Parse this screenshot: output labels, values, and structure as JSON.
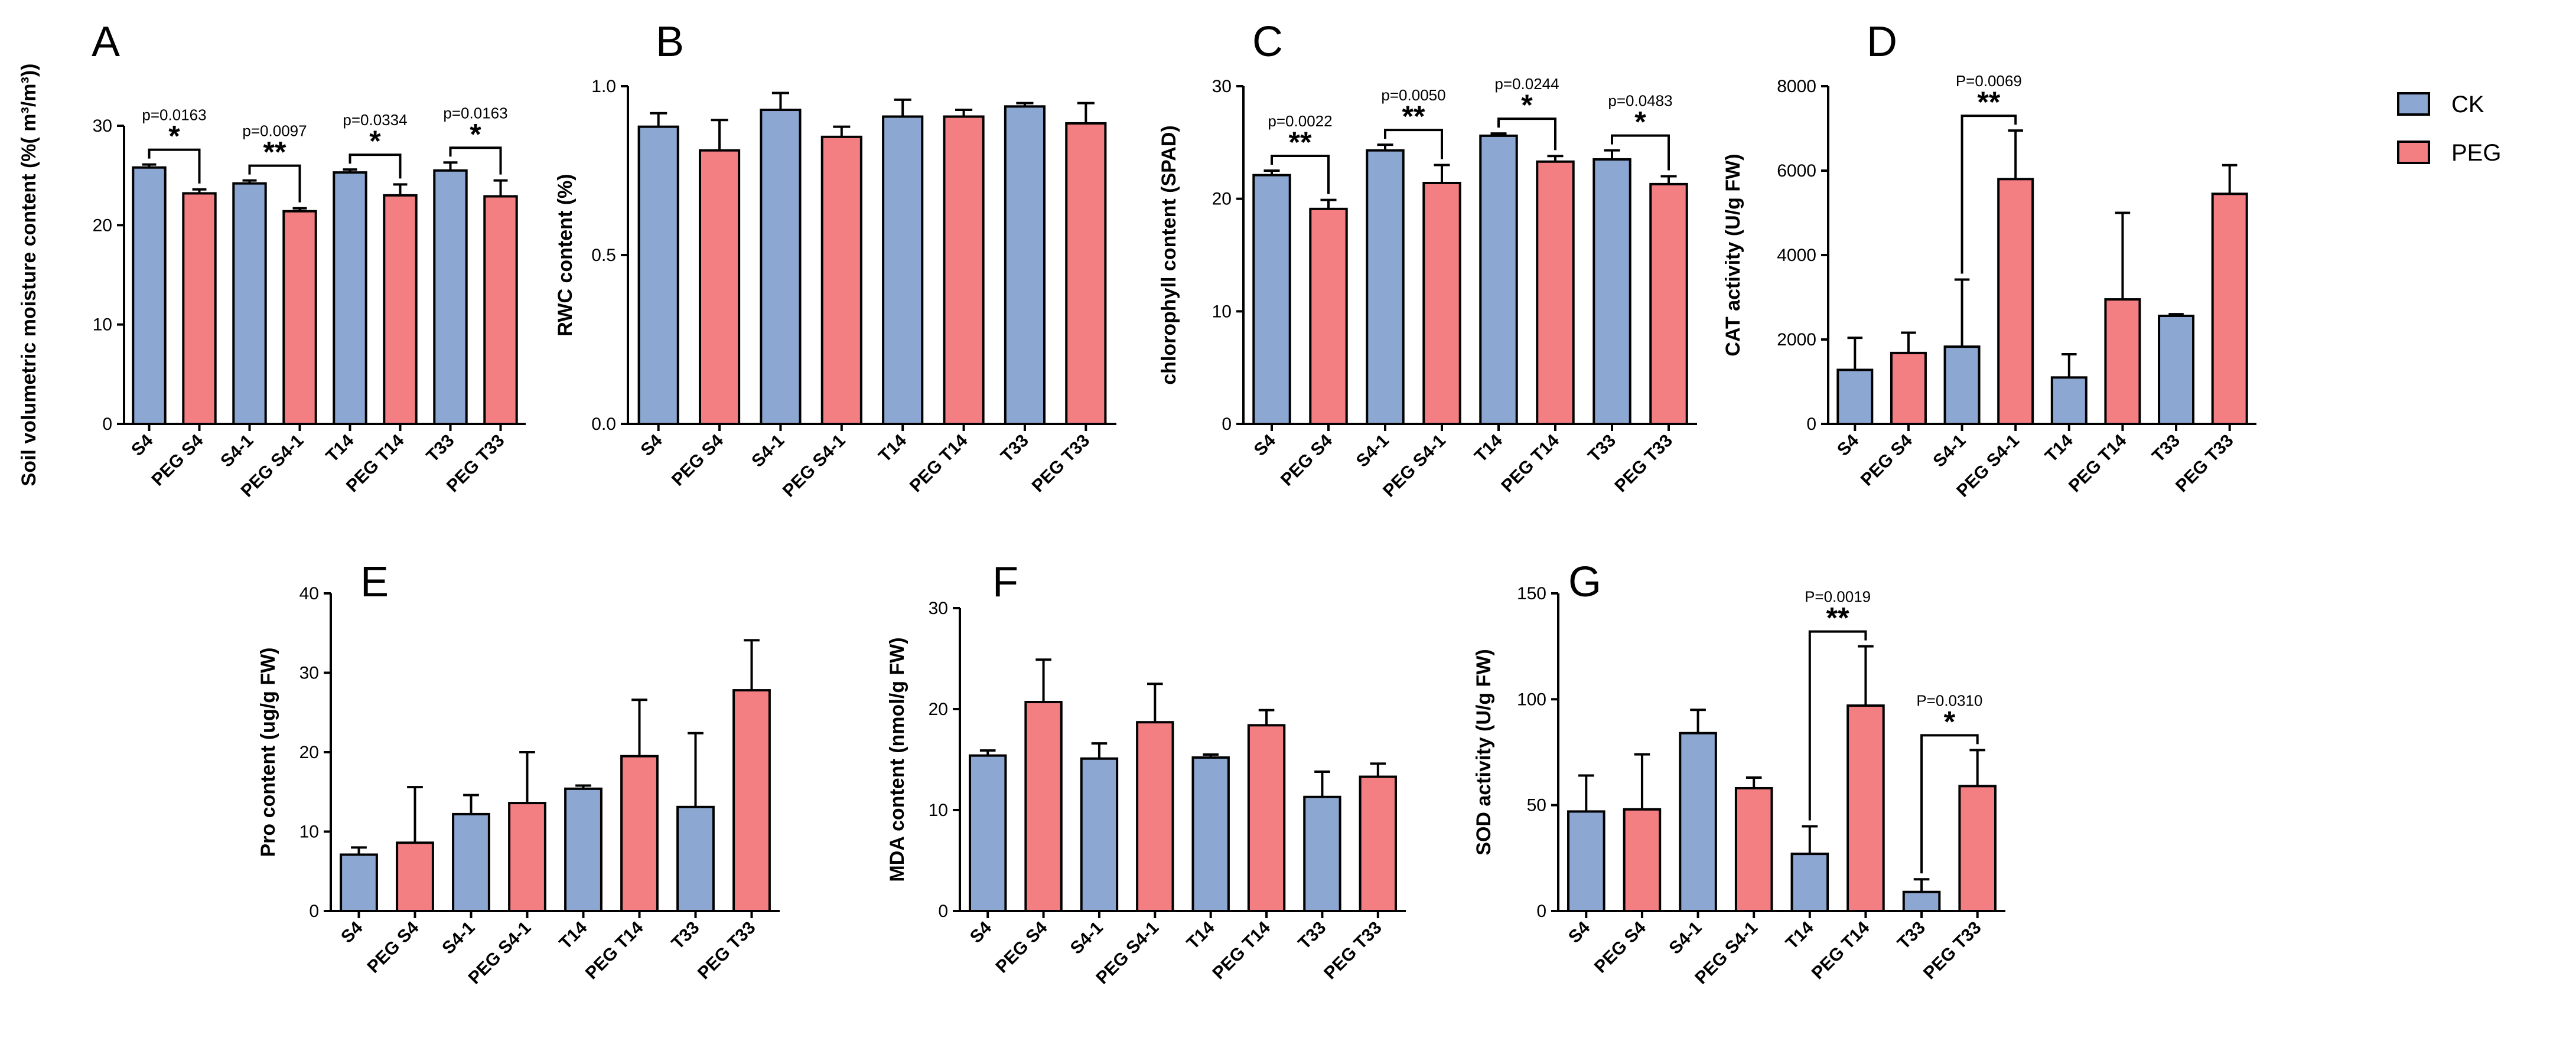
{
  "colors": {
    "CK": "#8ca8d2",
    "PEG": "#f47f83"
  },
  "legend": {
    "items": [
      {
        "label": "CK",
        "group": "CK"
      },
      {
        "label": "PEG",
        "group": "PEG"
      }
    ]
  },
  "chart_data": [
    {
      "panel": "A",
      "type": "bar",
      "ylabel": "Soil volumetric moisture content (%( m³/m³))",
      "ylim": [
        0,
        30
      ],
      "yticks": [
        "0",
        "10",
        "20",
        "30"
      ],
      "categories": [
        "S4",
        "PEG S4",
        "S4-1",
        "PEG S4-1",
        "T14",
        "PEG T14",
        "T33",
        "PEG T33"
      ],
      "groups": [
        "CK",
        "PEG",
        "CK",
        "PEG",
        "CK",
        "PEG",
        "CK",
        "PEG"
      ],
      "values": [
        25.8,
        23.2,
        24.2,
        21.4,
        25.3,
        23.0,
        25.5,
        22.9
      ],
      "errors": [
        0.3,
        0.4,
        0.3,
        0.3,
        0.3,
        1.1,
        0.8,
        1.6
      ],
      "comparisons": [
        {
          "from": 0,
          "to": 1,
          "p": "p=0.0163",
          "stars": "*"
        },
        {
          "from": 2,
          "to": 3,
          "p": "p=0.0097",
          "stars": "**"
        },
        {
          "from": 4,
          "to": 5,
          "p": "p=0.0334",
          "stars": "*"
        },
        {
          "from": 6,
          "to": 7,
          "p": "p=0.0163",
          "stars": "*"
        }
      ]
    },
    {
      "panel": "B",
      "type": "bar",
      "ylabel": "RWC content (%)",
      "ylim": [
        0,
        1
      ],
      "yticks": [
        "0.0",
        "0.5",
        "1.0"
      ],
      "categories": [
        "S4",
        "PEG S4",
        "S4-1",
        "PEG S4-1",
        "T14",
        "PEG T14",
        "T33",
        "PEG T33"
      ],
      "groups": [
        "CK",
        "PEG",
        "CK",
        "PEG",
        "CK",
        "PEG",
        "CK",
        "PEG"
      ],
      "values": [
        0.88,
        0.81,
        0.93,
        0.85,
        0.91,
        0.91,
        0.94,
        0.89
      ],
      "errors": [
        0.04,
        0.09,
        0.05,
        0.03,
        0.05,
        0.02,
        0.01,
        0.06
      ],
      "comparisons": []
    },
    {
      "panel": "C",
      "type": "bar",
      "ylabel": "chlorophyll content (SPAD)",
      "ylim": [
        0,
        30
      ],
      "yticks": [
        "0",
        "10",
        "20",
        "30"
      ],
      "categories": [
        "S4",
        "PEG S4",
        "S4-1",
        "PEG S4-1",
        "T14",
        "PEG T14",
        "T33",
        "PEG T33"
      ],
      "groups": [
        "CK",
        "PEG",
        "CK",
        "PEG",
        "CK",
        "PEG",
        "CK",
        "PEG"
      ],
      "values": [
        22.1,
        19.1,
        24.3,
        21.4,
        25.6,
        23.3,
        23.5,
        21.3
      ],
      "errors": [
        0.4,
        0.8,
        0.5,
        1.6,
        0.2,
        0.5,
        0.8,
        0.7
      ],
      "comparisons": [
        {
          "from": 0,
          "to": 1,
          "p": "p=0.0022",
          "stars": "**"
        },
        {
          "from": 2,
          "to": 3,
          "p": "p=0.0050",
          "stars": "**"
        },
        {
          "from": 4,
          "to": 5,
          "p": "p=0.0244",
          "stars": "*"
        },
        {
          "from": 6,
          "to": 7,
          "p": "p=0.0483",
          "stars": "*"
        }
      ]
    },
    {
      "panel": "D",
      "type": "bar",
      "ylabel": "CAT activity (U/g FW)",
      "ylim": [
        0,
        8000
      ],
      "yticks": [
        "0",
        "2000",
        "4000",
        "6000",
        "8000"
      ],
      "categories": [
        "S4",
        "PEG S4",
        "S4-1",
        "PEG S4-1",
        "T14",
        "PEG T14",
        "T33",
        "PEG T33"
      ],
      "groups": [
        "CK",
        "PEG",
        "CK",
        "PEG",
        "CK",
        "PEG",
        "CK",
        "PEG"
      ],
      "values": [
        1280,
        1680,
        1830,
        5800,
        1100,
        2950,
        2560,
        5450
      ],
      "errors": [
        760,
        480,
        1590,
        1150,
        550,
        2050,
        40,
        680
      ],
      "comparisons": [
        {
          "from": 2,
          "to": 3,
          "p": "P=0.0069",
          "stars": "**"
        }
      ]
    },
    {
      "panel": "E",
      "type": "bar",
      "ylabel": "Pro content (ug/g FW)",
      "ylim": [
        0,
        40
      ],
      "yticks": [
        "0",
        "10",
        "20",
        "30",
        "40"
      ],
      "categories": [
        "S4",
        "PEG S4",
        "S4-1",
        "PEG S4-1",
        "T14",
        "PEG T14",
        "T33",
        "PEG T33"
      ],
      "groups": [
        "CK",
        "PEG",
        "CK",
        "PEG",
        "CK",
        "PEG",
        "CK",
        "PEG"
      ],
      "values": [
        7.1,
        8.6,
        12.2,
        13.6,
        15.4,
        19.5,
        13.1,
        27.8
      ],
      "errors": [
        0.9,
        7.0,
        2.4,
        6.4,
        0.4,
        7.1,
        9.3,
        6.3
      ],
      "comparisons": []
    },
    {
      "panel": "F",
      "type": "bar",
      "ylabel": "MDA content (nmol/g FW)",
      "ylim": [
        0,
        30
      ],
      "yticks": [
        "0",
        "10",
        "20",
        "30"
      ],
      "categories": [
        "S4",
        "PEG S4",
        "S4-1",
        "PEG S4-1",
        "T14",
        "PEG T14",
        "T33",
        "PEG T33"
      ],
      "groups": [
        "CK",
        "PEG",
        "CK",
        "PEG",
        "CK",
        "PEG",
        "CK",
        "PEG"
      ],
      "values": [
        15.4,
        20.7,
        15.1,
        18.7,
        15.2,
        18.4,
        11.3,
        13.3
      ],
      "errors": [
        0.5,
        4.2,
        1.5,
        3.8,
        0.3,
        1.5,
        2.5,
        1.3
      ],
      "comparisons": []
    },
    {
      "panel": "G",
      "type": "bar",
      "ylabel": "SOD activity (U/g FW)",
      "ylim": [
        0,
        150
      ],
      "yticks": [
        "0",
        "50",
        "100",
        "150"
      ],
      "categories": [
        "S4",
        "PEG S4",
        "S4-1",
        "PEG S4-1",
        "T14",
        "PEG T14",
        "T33",
        "PEG T33"
      ],
      "groups": [
        "CK",
        "PEG",
        "CK",
        "PEG",
        "CK",
        "PEG",
        "CK",
        "PEG"
      ],
      "values": [
        47,
        48,
        84,
        58,
        27,
        97,
        9,
        59
      ],
      "errors": [
        17,
        26,
        11,
        5,
        13,
        28,
        6,
        17
      ],
      "comparisons": [
        {
          "from": 4,
          "to": 5,
          "p": "P=0.0019",
          "stars": "**"
        },
        {
          "from": 6,
          "to": 7,
          "p": "P=0.0310",
          "stars": "*"
        }
      ]
    }
  ]
}
